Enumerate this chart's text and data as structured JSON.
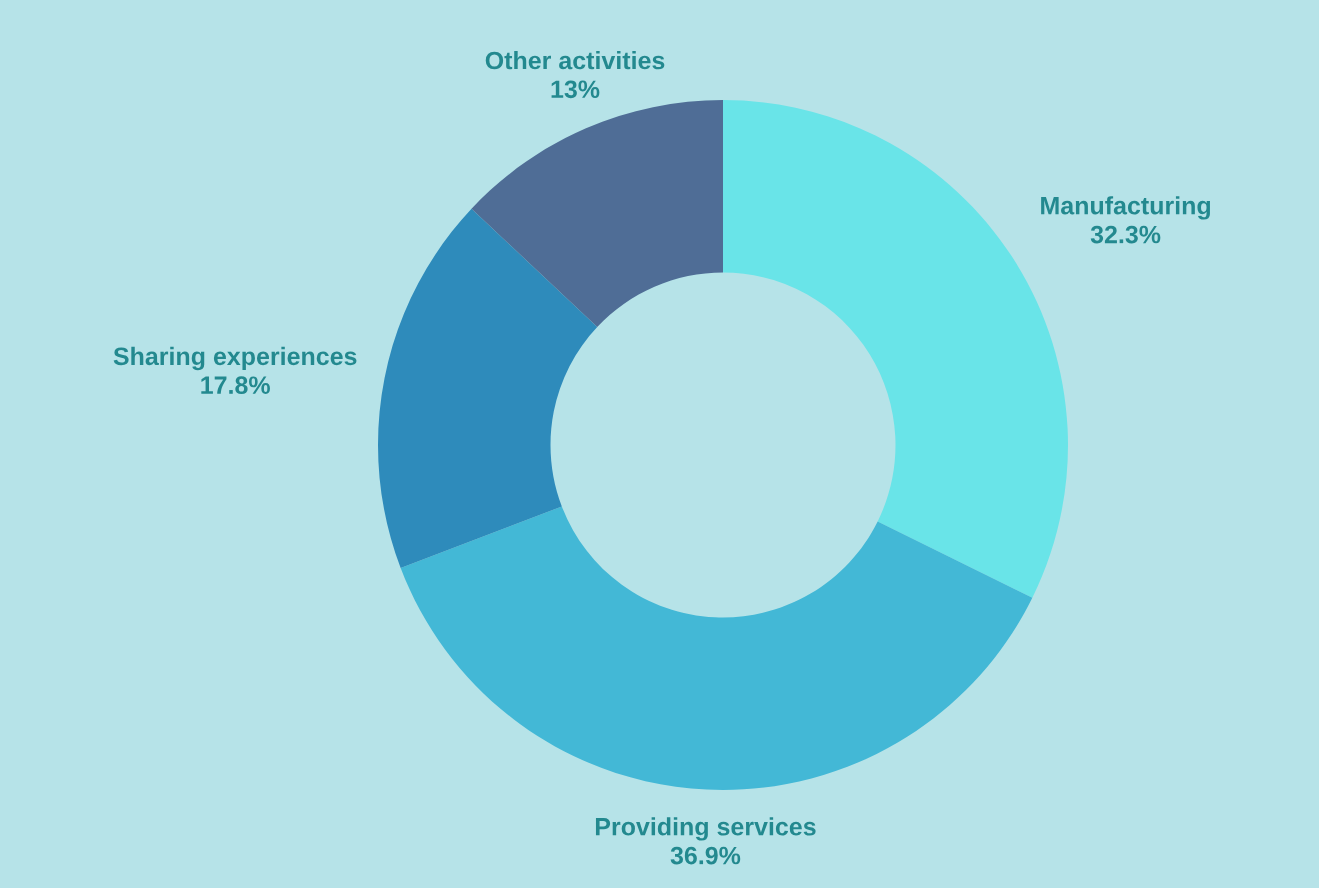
{
  "chart_data": {
    "type": "donut",
    "categories": [
      "Manufacturing",
      "Providing services",
      "Sharing experiences",
      "Other activities"
    ],
    "values": [
      32.3,
      36.9,
      17.8,
      13
    ],
    "value_labels": [
      "32.3%",
      "36.9%",
      "17.8%",
      "13%"
    ],
    "colors": [
      "#69e4e8",
      "#43b8d6",
      "#2e8bbb",
      "#4f6d96"
    ],
    "legend": false
  }
}
